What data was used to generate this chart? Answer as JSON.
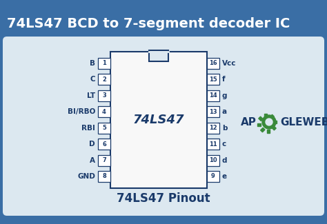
{
  "title": "74LS47 BCD to 7-segment decoder IC",
  "subtitle": "74LS47 Pinout",
  "bg_color": "#3a6ea5",
  "inner_bg": "#dce8f0",
  "ic_label": "74LS47",
  "ic_color": "#f8f8f8",
  "ic_border": "#1a3a6a",
  "text_color": "#1a3a6a",
  "pin_label_color": "#1a3a6a",
  "left_pins": [
    {
      "num": "1",
      "label": "B"
    },
    {
      "num": "2",
      "label": "C"
    },
    {
      "num": "3",
      "label": "LT"
    },
    {
      "num": "4",
      "label": "BI/RBO"
    },
    {
      "num": "5",
      "label": "RBI"
    },
    {
      "num": "6",
      "label": "D"
    },
    {
      "num": "7",
      "label": "A"
    },
    {
      "num": "8",
      "label": "GND"
    }
  ],
  "right_pins": [
    {
      "num": "16",
      "label": "Vcc"
    },
    {
      "num": "15",
      "label": "f"
    },
    {
      "num": "14",
      "label": "g"
    },
    {
      "num": "13",
      "label": "a"
    },
    {
      "num": "12",
      "label": "b"
    },
    {
      "num": "11",
      "label": "c"
    },
    {
      "num": "10",
      "label": "d"
    },
    {
      "num": "9",
      "label": "e"
    }
  ],
  "apogleweb_color": "#1a3a6a",
  "gear_color": "#3a8a3a",
  "title_fontsize": 14,
  "subtitle_fontsize": 12
}
